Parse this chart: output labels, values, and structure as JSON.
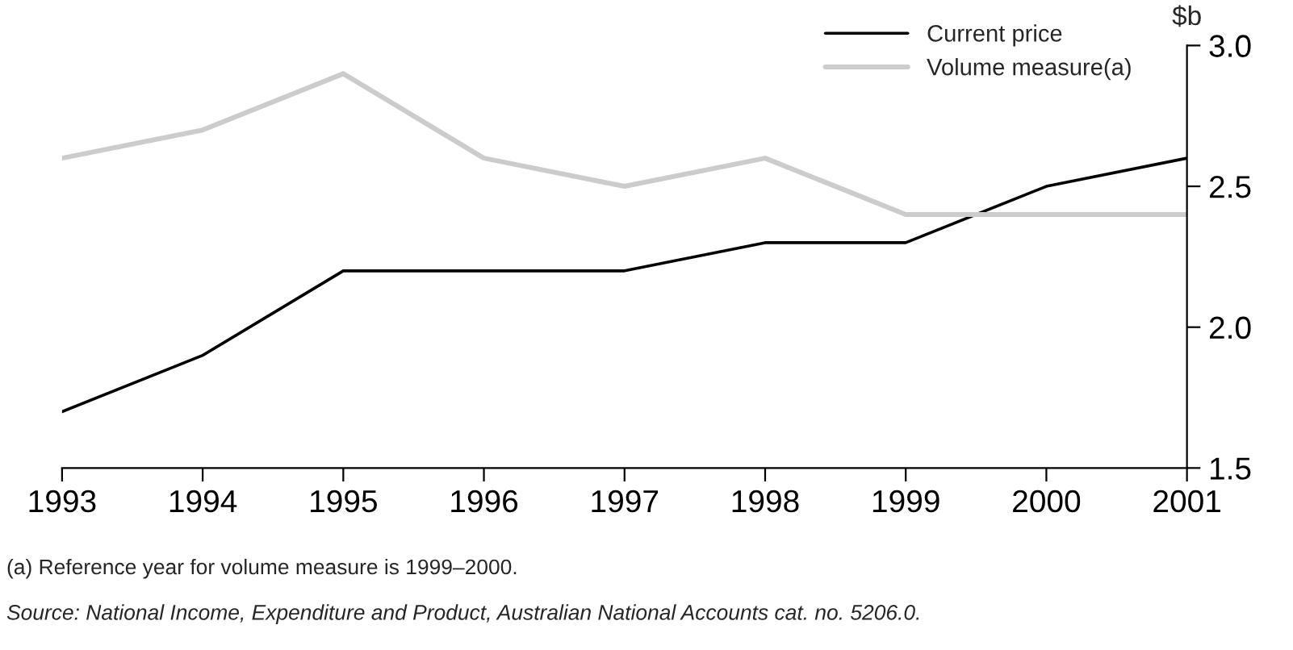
{
  "chart_data": {
    "type": "line",
    "x": [
      1993,
      1994,
      1995,
      1996,
      1997,
      1998,
      1999,
      2000,
      2001
    ],
    "series": [
      {
        "name": "Current price",
        "color": "#000000",
        "values": [
          1.7,
          1.9,
          2.2,
          2.2,
          2.2,
          2.3,
          2.3,
          2.5,
          2.6
        ]
      },
      {
        "name": "Volume measure(a)",
        "color": "#cccccc",
        "values": [
          2.6,
          2.7,
          2.9,
          2.6,
          2.5,
          2.6,
          2.4,
          2.4,
          2.4
        ]
      }
    ],
    "ylabel": "$b",
    "xlim": [
      1993,
      2001
    ],
    "xticks": [
      1993,
      1994,
      1995,
      1996,
      1997,
      1998,
      1999,
      2000,
      2001
    ],
    "ylim": [
      1.5,
      3.0
    ],
    "yticks": [
      1.5,
      {
        "value": 2,
        "label": "2.0"
      },
      2.5,
      {
        "value": 3,
        "label": "3.0"
      }
    ],
    "grid": false,
    "legend": "top right",
    "marker": "none",
    "line_style": "solid",
    "annotations": [
      "(a) Reference year for volume measure is 1999–2000.",
      "Source: National Income, Expenditure and Product, Australian National Accounts cat. no. 5206.0."
    ]
  }
}
